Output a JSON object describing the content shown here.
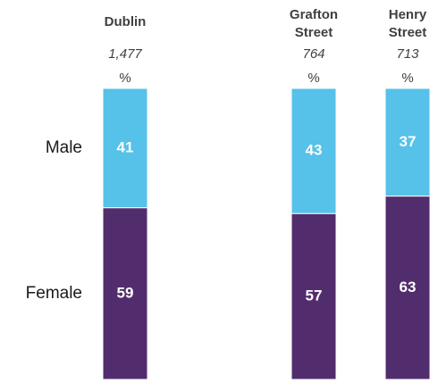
{
  "chart_data": {
    "type": "stacked-bar",
    "categories": [
      "Dublin",
      "Grafton Street",
      "Henry Street"
    ],
    "bases": [
      "1,477",
      "764",
      "713"
    ],
    "unit": "%",
    "ylim": [
      0,
      100
    ],
    "series": [
      {
        "name": "Female",
        "color": "#522d6d",
        "values": [
          59,
          57,
          63
        ]
      },
      {
        "name": "Male",
        "color": "#56c1e9",
        "values": [
          41,
          43,
          37
        ]
      }
    ]
  }
}
